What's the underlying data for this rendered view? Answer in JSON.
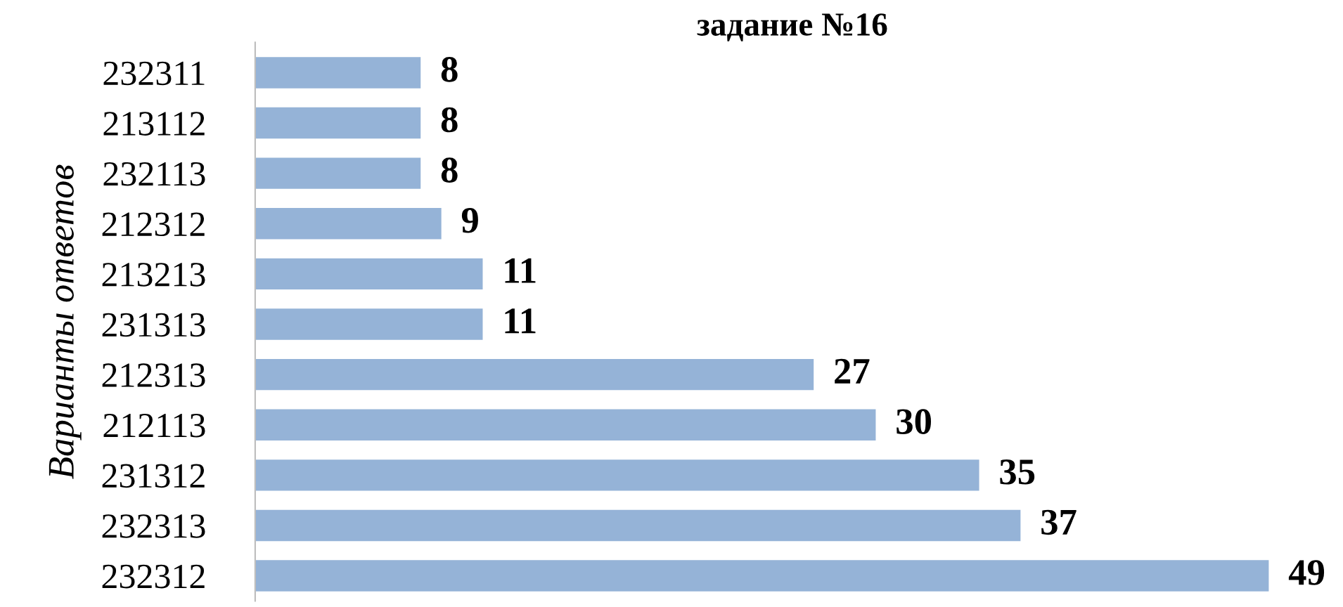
{
  "chart_data": {
    "type": "bar",
    "orientation": "horizontal",
    "title": "задание №16",
    "ylabel": "Варианты ответов",
    "categories": [
      "232311",
      "213112",
      "232113",
      "212312",
      "213213",
      "231313",
      "212313",
      "212113",
      "231312",
      "232313",
      "232312"
    ],
    "values": [
      8,
      8,
      8,
      9,
      11,
      11,
      27,
      30,
      35,
      37,
      49
    ],
    "color": "#95b3d7",
    "data_labels": true,
    "grid": false,
    "legend": false
  }
}
